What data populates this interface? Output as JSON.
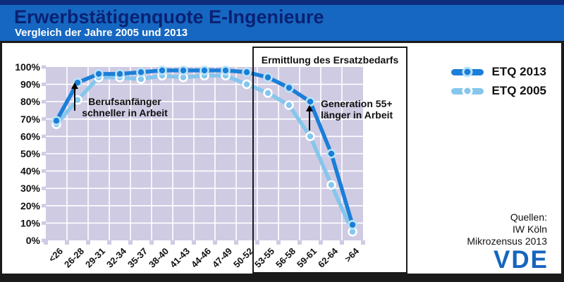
{
  "header": {
    "title": "Erwerbstätigenquote E-Ingenieure",
    "subtitle": "Vergleich der Jahre 2005 und 2013"
  },
  "annotations": {
    "box_label": "Ermittlung des Ersatzbedarfs",
    "early_career": {
      "line1": "Berufsanfänger",
      "line2": "schneller in Arbeit"
    },
    "generation55": {
      "line1": "Generation 55+",
      "line2": "länger in Arbeit"
    }
  },
  "source": {
    "title": "Quellen:",
    "lines": [
      "IW Köln",
      "Mikrozensus 2013"
    ]
  },
  "logo_text": "VDE",
  "colors": {
    "header_bg": "#1667c1",
    "header_top_strip": "#0d2d7c",
    "title": "#0a2173",
    "subtitle": "#ffffff",
    "plot_bg": "#cfcbe3",
    "grid": "#ffffff",
    "vde_blue": "#1565bd",
    "text": "#111111"
  },
  "chart_data": {
    "type": "line",
    "title": "Erwerbstätigenquote E-Ingenieure",
    "categories": [
      "<26",
      "26-28",
      "29-31",
      "32-34",
      "35-37",
      "38-40",
      "41-43",
      "44-46",
      "47-49",
      "50-52",
      "53-55",
      "56-58",
      "59-61",
      "62-64",
      ">64"
    ],
    "series": [
      {
        "name": "ETQ 2013",
        "color": "#1b7ed8",
        "marker_ring": "#b9e3f7",
        "values": [
          69,
          91,
          96,
          96,
          97,
          98,
          98,
          98,
          98,
          97,
          94,
          88,
          80,
          50,
          9
        ]
      },
      {
        "name": "ETQ 2005",
        "color": "#85c6ec",
        "marker_ring": "#ffffff",
        "values": [
          67,
          81,
          94,
          94,
          93,
          95,
          94,
          95,
          95,
          90,
          85,
          78,
          60,
          32,
          5
        ]
      }
    ],
    "xlabel": "",
    "ylabel": "",
    "ylim": [
      0,
      100
    ],
    "ytick_step": 10,
    "ytick_labels": [
      "0%",
      "10%",
      "20%",
      "30%",
      "40%",
      "50%",
      "60%",
      "70%",
      "80%",
      "90%",
      "100%"
    ],
    "grid": true,
    "legend_position": "top-right",
    "plot_bg": "#cfcbe3",
    "grid_color": "#ffffff"
  }
}
